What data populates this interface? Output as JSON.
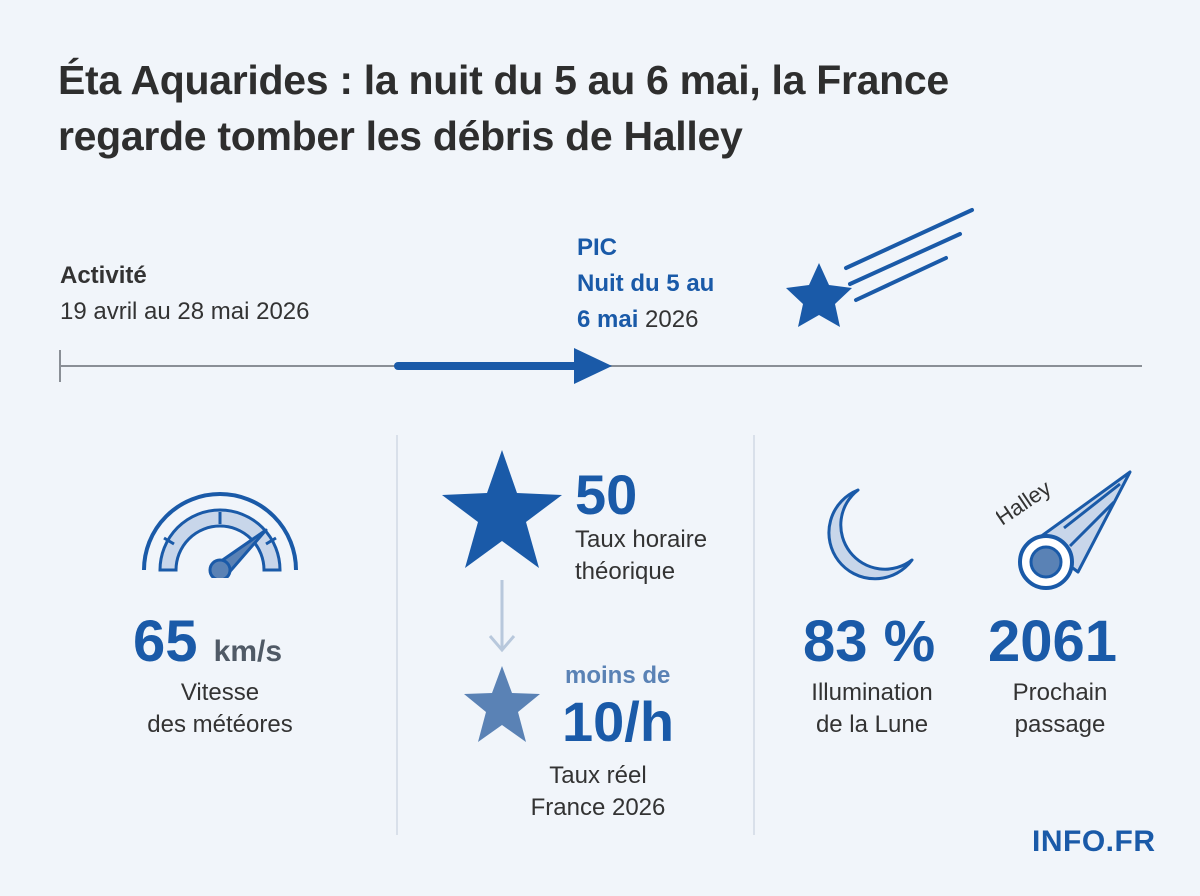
{
  "title": {
    "line1": "Éta Aquarides : la nuit du 5 au 6 mai, la France",
    "line2": "regarde tomber les débris de Halley"
  },
  "timeline": {
    "activity_label": "Activité",
    "activity_dates": "19 avril au 28 mai 2026",
    "peak_label": "PIC",
    "peak_line1": "Nuit du 5 au",
    "peak_line2_bold": "6 mai",
    "peak_line2_rest": " 2026"
  },
  "stats": {
    "speed": {
      "value": "65",
      "unit": "km/s",
      "caption_line1": "Vitesse",
      "caption_line2": "des météores"
    },
    "theoretical_rate": {
      "value": "50",
      "caption_line1": "Taux horaire",
      "caption_line2": "théorique"
    },
    "real_rate": {
      "prefix": "moins de",
      "value": "10/h",
      "caption_line1": "Taux réel",
      "caption_line2": "France 2026"
    },
    "moon": {
      "value": "83 %",
      "caption_line1": "Illumination",
      "caption_line2": "de la Lune"
    },
    "halley": {
      "icon_label": "Halley",
      "value": "2061",
      "caption_line1": "Prochain",
      "caption_line2": "passage"
    }
  },
  "brand": "INFO.FR",
  "icons": [
    "shooting-star-icon",
    "speedometer-icon",
    "star-icon",
    "arrow-down-icon",
    "moon-icon",
    "comet-icon"
  ],
  "colors": {
    "accent": "#1a5aa8",
    "light_accent": "#5a82b5",
    "pale": "#c8d6ea",
    "background": "#f1f5fa"
  }
}
